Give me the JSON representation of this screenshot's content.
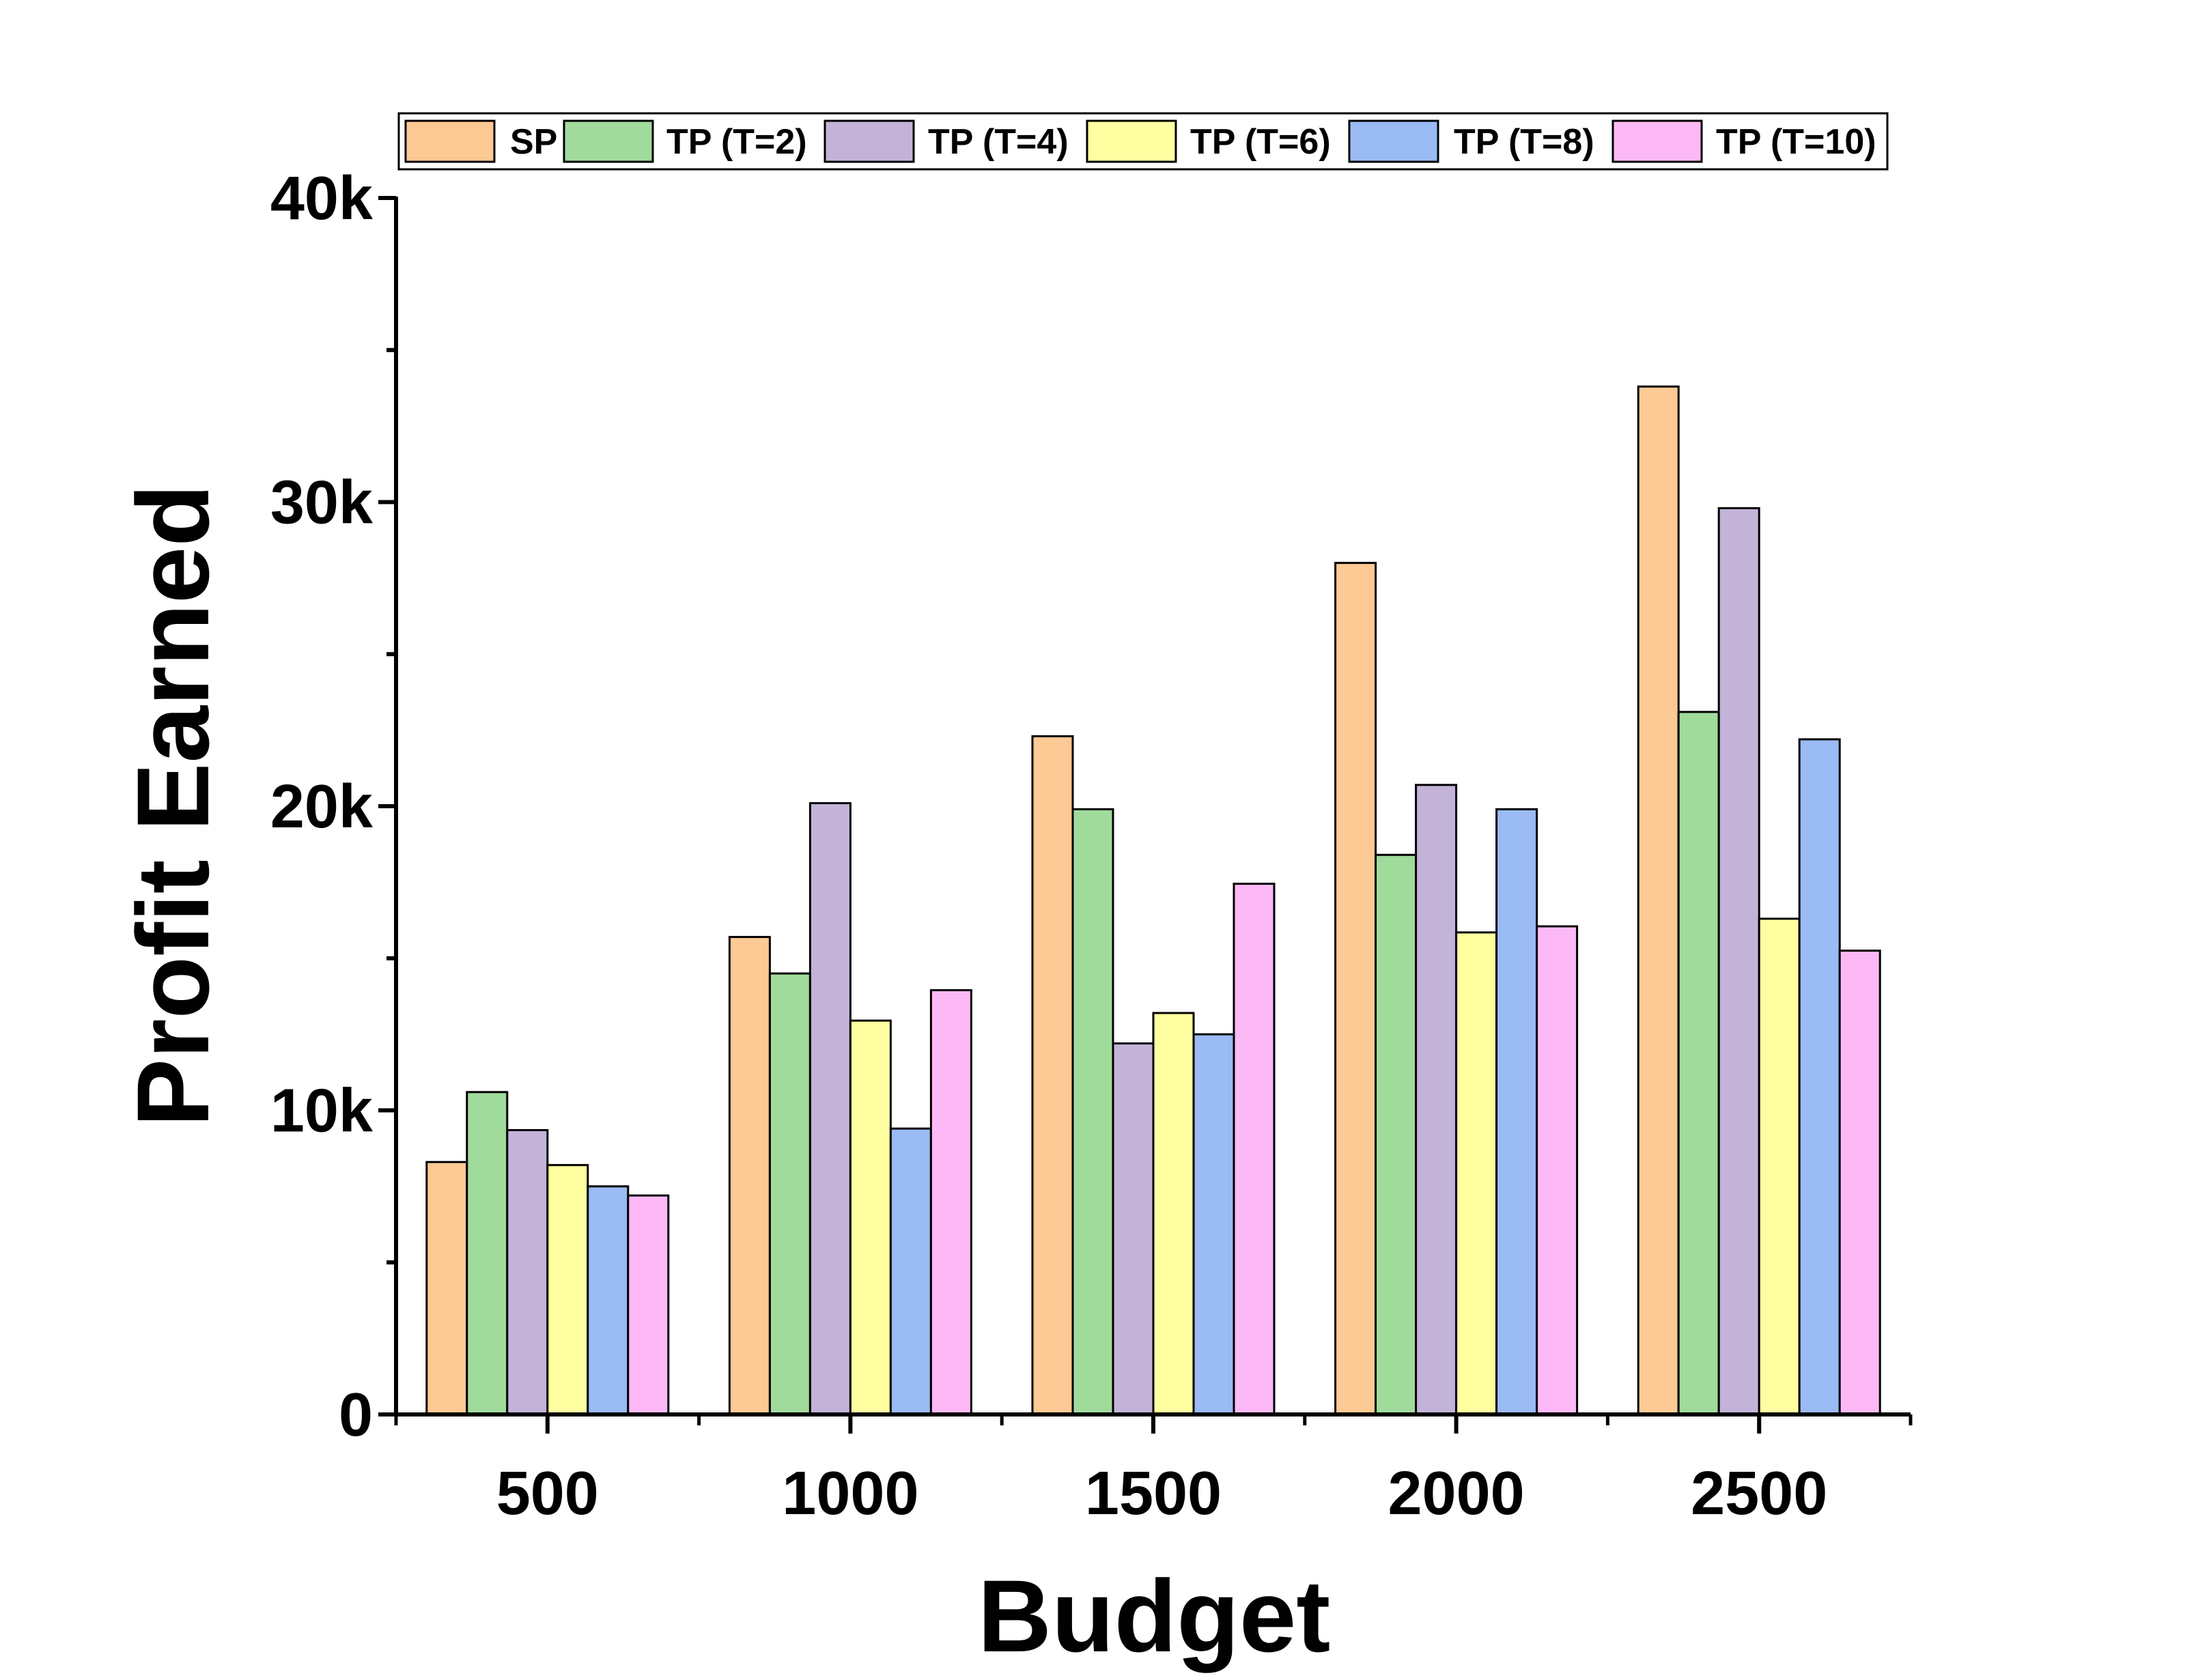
{
  "chart_data": {
    "type": "bar",
    "title": "",
    "xlabel": "Budget",
    "ylabel": "Profit Earned",
    "categories": [
      "500",
      "1000",
      "1500",
      "2000",
      "2500"
    ],
    "ylim": [
      0,
      40000
    ],
    "yticks": [
      {
        "value": 0,
        "label": "0"
      },
      {
        "value": 10000,
        "label": "10k"
      },
      {
        "value": 20000,
        "label": "20k"
      },
      {
        "value": 30000,
        "label": "30k"
      },
      {
        "value": 40000,
        "label": "40k"
      }
    ],
    "legend_position": "top",
    "grid": false,
    "series": [
      {
        "name": "SP",
        "color": "#FDC994",
        "values": [
          8300,
          15700,
          22300,
          28000,
          33800
        ]
      },
      {
        "name": "TP (T=2)",
        "color": "#A0DB9C",
        "values": [
          10600,
          14500,
          19900,
          18400,
          23100
        ]
      },
      {
        "name": "TP (T=4)",
        "color": "#C3B3D9",
        "values": [
          9350,
          20100,
          12200,
          20700,
          29800
        ]
      },
      {
        "name": "TP (T=6)",
        "color": "#FFFFA1",
        "values": [
          8200,
          12950,
          13200,
          15850,
          16300
        ]
      },
      {
        "name": "TP (T=8)",
        "color": "#9ABBF3",
        "values": [
          7500,
          9400,
          12500,
          19900,
          22200
        ]
      },
      {
        "name": "TP (T=10)",
        "color": "#FDB9F6",
        "values": [
          7200,
          13950,
          17450,
          16050,
          15250
        ]
      }
    ]
  }
}
